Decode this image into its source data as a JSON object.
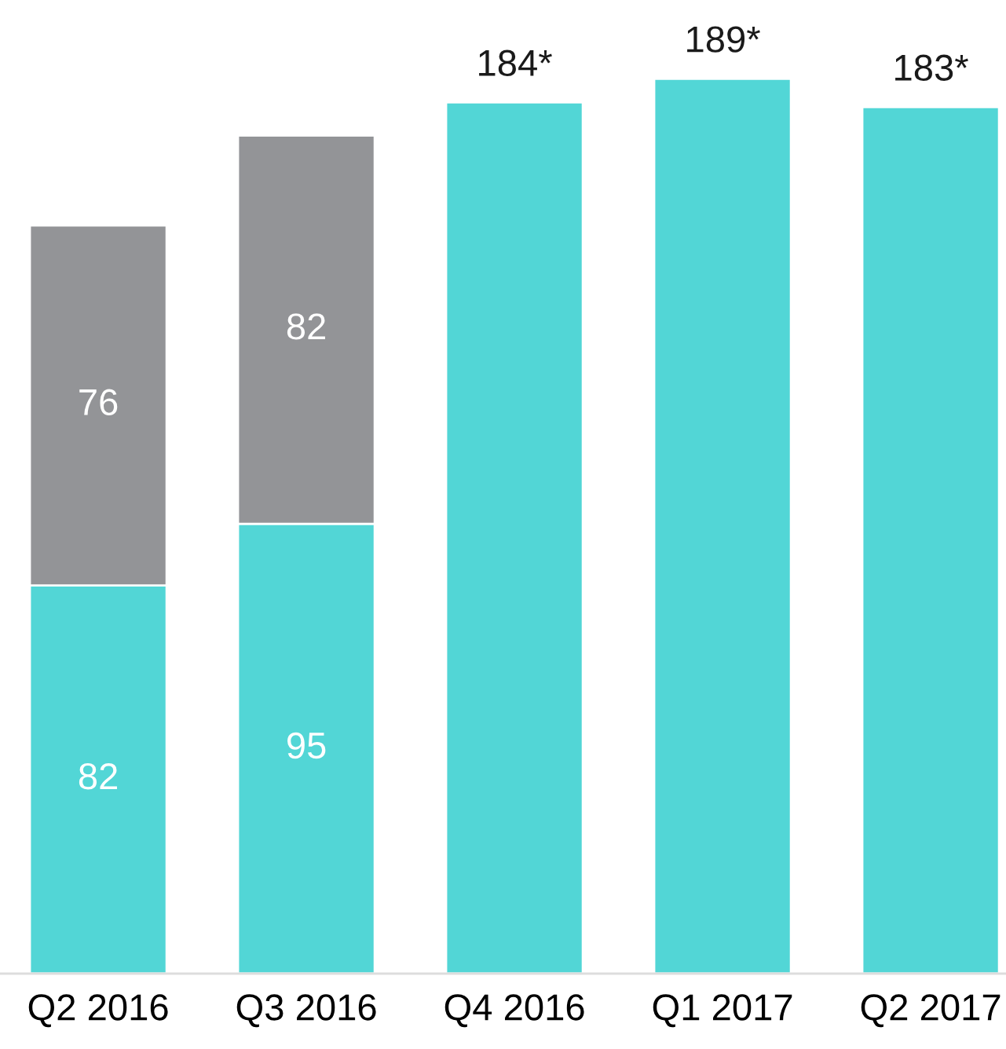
{
  "chart_data": {
    "type": "bar",
    "stacked": true,
    "categories": [
      "Q2 2016",
      "Q3 2016",
      "Q4 2016",
      "Q1 2017",
      "Q2 2017"
    ],
    "series": [
      {
        "color": "#52d6d6",
        "values": [
          82,
          95,
          184,
          189,
          183
        ],
        "value_labels": [
          "82",
          "95",
          null,
          null,
          null
        ]
      },
      {
        "color": "#939497",
        "values": [
          76,
          82,
          null,
          null,
          null
        ],
        "value_labels": [
          "76",
          "82",
          null,
          null,
          null
        ]
      }
    ],
    "totals": [
      null,
      null,
      "184*",
      "189*",
      "183*"
    ],
    "grid": false,
    "legend": false,
    "tick_labels": "x"
  }
}
